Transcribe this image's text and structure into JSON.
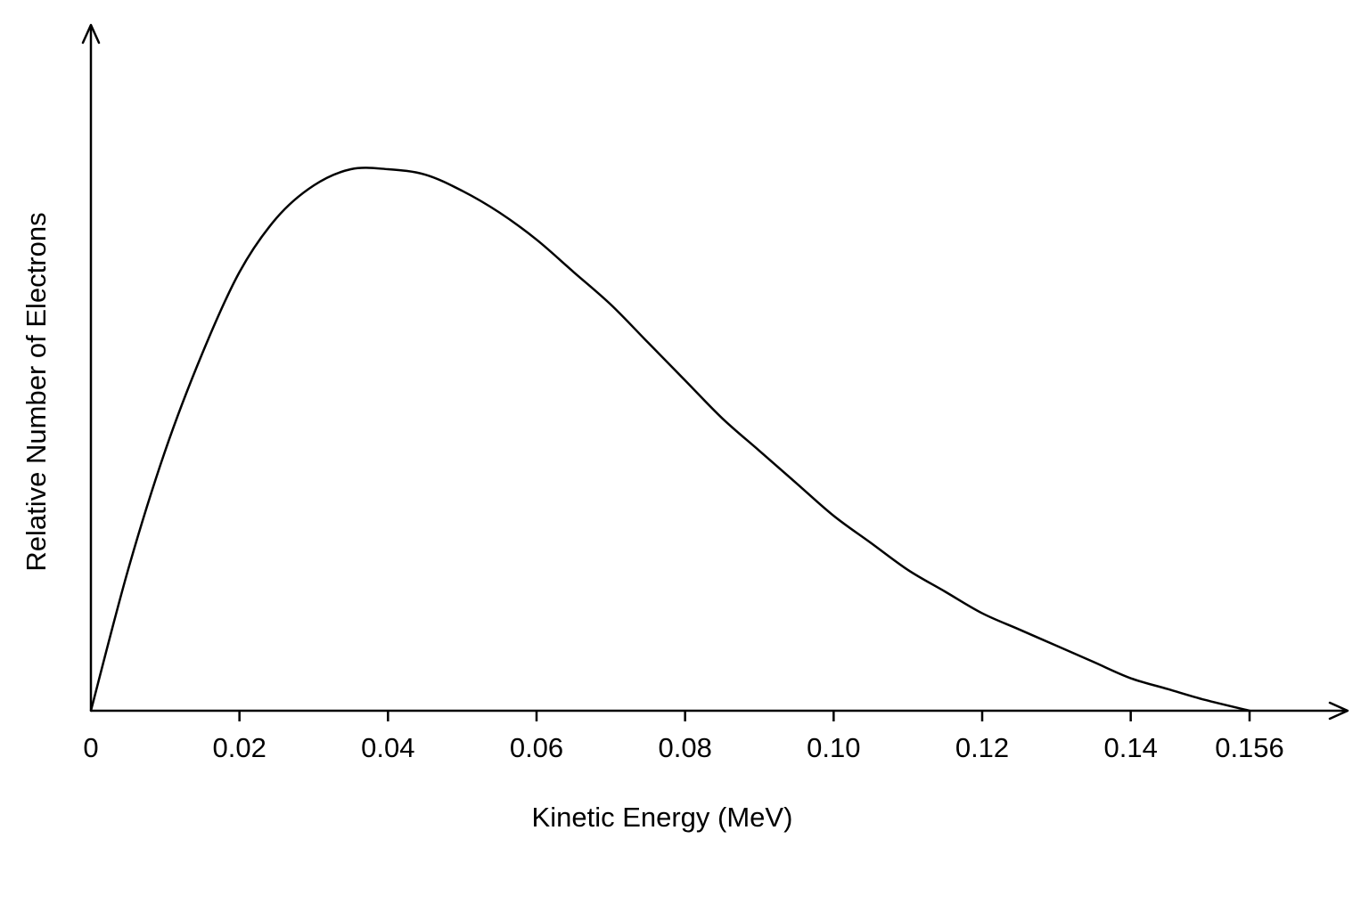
{
  "chart_data": {
    "type": "line",
    "title": "",
    "xlabel": "Kinetic Energy (MeV)",
    "ylabel": "Relative Number of Electrons",
    "xlim": [
      0,
      0.156
    ],
    "ylim": [
      0,
      1.0
    ],
    "x_ticks": [
      {
        "value": 0,
        "label": "0"
      },
      {
        "value": 0.02,
        "label": "0.02"
      },
      {
        "value": 0.04,
        "label": "0.04"
      },
      {
        "value": 0.06,
        "label": "0.06"
      },
      {
        "value": 0.08,
        "label": "0.08"
      },
      {
        "value": 0.1,
        "label": "0.10"
      },
      {
        "value": 0.12,
        "label": "0.12"
      },
      {
        "value": 0.14,
        "label": "0.14"
      },
      {
        "value": 0.156,
        "label": "0.156"
      }
    ],
    "y_ticks_shown": false,
    "grid": false,
    "legend": "none",
    "series": [
      {
        "x": [
          0,
          0.005,
          0.01,
          0.015,
          0.02,
          0.025,
          0.03,
          0.035,
          0.04,
          0.045,
          0.05,
          0.055,
          0.06,
          0.065,
          0.07,
          0.075,
          0.08,
          0.085,
          0.09,
          0.095,
          0.1,
          0.105,
          0.11,
          0.115,
          0.12,
          0.125,
          0.13,
          0.135,
          0.14,
          0.145,
          0.15,
          0.156
        ],
        "y": [
          0,
          0.26,
          0.48,
          0.66,
          0.81,
          0.91,
          0.97,
          1.0,
          1.0,
          0.99,
          0.96,
          0.92,
          0.87,
          0.81,
          0.75,
          0.68,
          0.61,
          0.54,
          0.48,
          0.42,
          0.36,
          0.31,
          0.26,
          0.22,
          0.18,
          0.15,
          0.12,
          0.09,
          0.06,
          0.04,
          0.02,
          0
        ]
      }
    ]
  },
  "colors": {
    "line": "#000000",
    "background": "#ffffff"
  }
}
